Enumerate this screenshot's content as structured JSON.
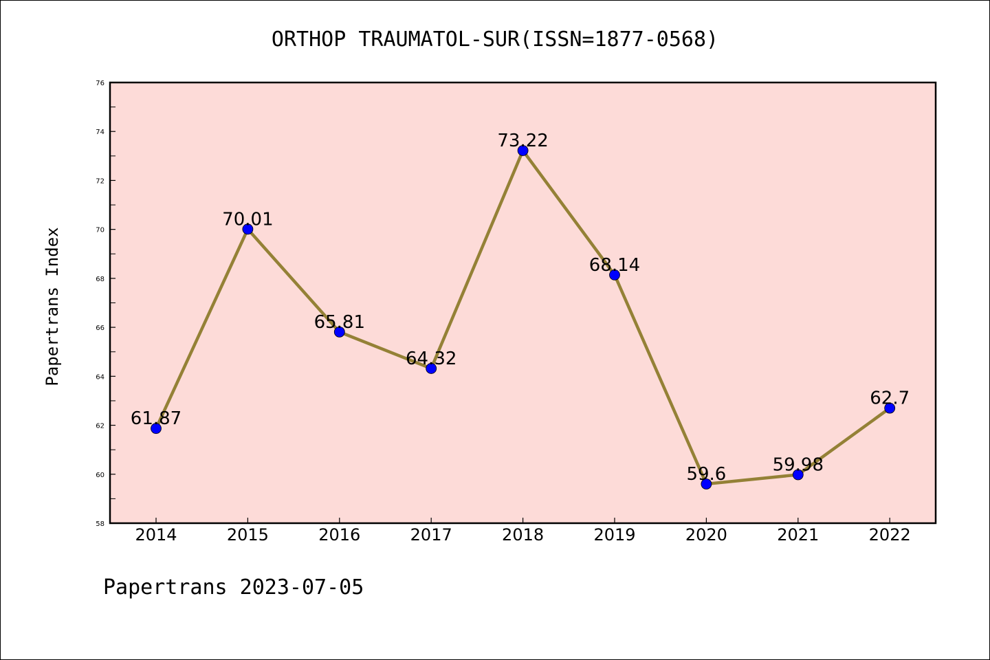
{
  "chart_data": {
    "type": "line",
    "title": "ORTHOP TRAUMATOL-SUR(ISSN=1877-0568)",
    "xlabel": "",
    "ylabel": "Papertrans Index",
    "footer": "Papertrans 2023-07-05",
    "categories": [
      "2014",
      "2015",
      "2016",
      "2017",
      "2018",
      "2019",
      "2020",
      "2021",
      "2022"
    ],
    "values": [
      61.87,
      70.01,
      65.81,
      64.32,
      73.22,
      68.14,
      59.6,
      59.98,
      62.7
    ],
    "data_labels": [
      "61.87",
      "70.01",
      "65.81",
      "64.32",
      "73.22",
      "68.14",
      "59.6",
      "59.98",
      "62.7"
    ],
    "ylim": [
      58,
      76
    ],
    "yticks": [
      58,
      60,
      62,
      64,
      66,
      68,
      70,
      72,
      74,
      76
    ],
    "grid": false,
    "legend": "none",
    "colors": {
      "plot_background": "#fddbd8",
      "line": "#948136",
      "marker": "#0000ff",
      "axes": "#000000"
    }
  }
}
